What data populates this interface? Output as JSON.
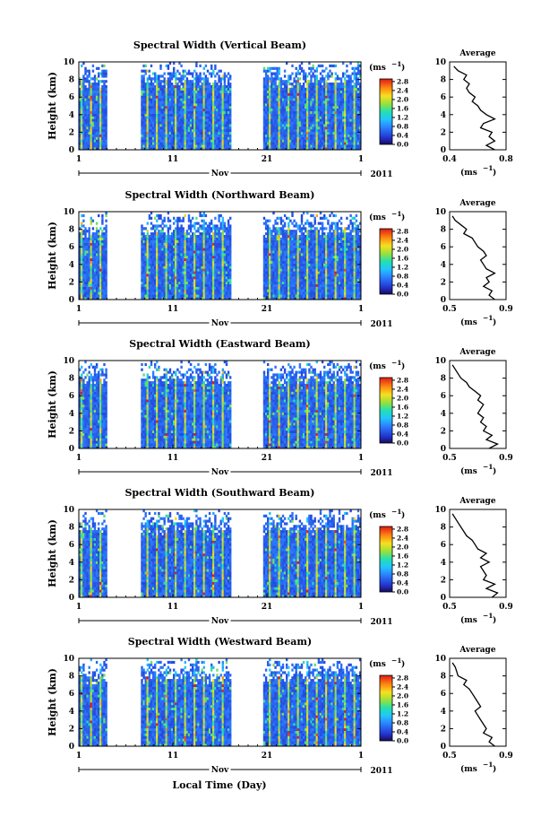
{
  "figure": {
    "xlabel": "Local Time (Day)",
    "month_label": "Nov",
    "year_label": "2011",
    "ylabel": "Height (km)",
    "unit_label": "(ms",
    "unit_exp": "−1",
    "avg_title": "Average",
    "avg_unit": "(ms",
    "avg_unit_exp": "−1"
  },
  "chart_data": [
    {
      "type": "heatmap",
      "title": "Spectral Width (Vertical Beam)",
      "x_ticks": [
        "1",
        "11",
        "21",
        "1"
      ],
      "xlim_days": [
        1,
        31
      ],
      "y_ticks": [
        "0",
        "2",
        "4",
        "6",
        "8",
        "10"
      ],
      "ylim": [
        0,
        10
      ],
      "data_gaps_days": [
        [
          4.0,
          7.6
        ],
        [
          17.2,
          20.5
        ]
      ],
      "colorbar": {
        "ticks": [
          "0.0",
          "0.4",
          "0.8",
          "1.2",
          "1.6",
          "2.0",
          "2.4",
          "2.8"
        ],
        "range": [
          0,
          2.8
        ]
      },
      "profile": {
        "title": "Average",
        "x_ticks": [
          "0.4",
          "0.8"
        ],
        "xlim": [
          0.4,
          0.8
        ],
        "y": [
          0,
          0.5,
          1,
          1.5,
          2,
          2.5,
          3,
          3.5,
          4,
          4.5,
          5,
          5.5,
          6,
          6.5,
          7,
          7.5,
          8,
          8.5,
          9,
          9.5
        ],
        "values": [
          0.72,
          0.66,
          0.72,
          0.68,
          0.7,
          0.62,
          0.64,
          0.72,
          0.66,
          0.62,
          0.6,
          0.56,
          0.58,
          0.54,
          0.52,
          0.54,
          0.5,
          0.52,
          0.46,
          0.43
        ]
      }
    },
    {
      "type": "heatmap",
      "title": "Spectral Width (Northward Beam)",
      "x_ticks": [
        "1",
        "11",
        "21",
        "1"
      ],
      "xlim_days": [
        1,
        31
      ],
      "y_ticks": [
        "0",
        "2",
        "4",
        "6",
        "8",
        "10"
      ],
      "ylim": [
        0,
        10
      ],
      "data_gaps_days": [
        [
          4.0,
          7.6
        ],
        [
          17.2,
          20.5
        ]
      ],
      "colorbar": {
        "ticks": [
          "0.0",
          "0.4",
          "0.8",
          "1.2",
          "1.6",
          "2.0",
          "2.4",
          "2.8"
        ],
        "range": [
          0,
          2.8
        ]
      },
      "profile": {
        "title": "Average",
        "x_ticks": [
          "0.5",
          "0.9"
        ],
        "xlim": [
          0.5,
          0.9
        ],
        "y": [
          0,
          0.5,
          1,
          1.5,
          2,
          2.5,
          3,
          3.5,
          4,
          4.5,
          5,
          5.5,
          6,
          6.5,
          7,
          7.5,
          8,
          8.5,
          9,
          9.5
        ],
        "values": [
          0.82,
          0.78,
          0.8,
          0.74,
          0.78,
          0.76,
          0.82,
          0.76,
          0.74,
          0.72,
          0.76,
          0.74,
          0.7,
          0.68,
          0.66,
          0.6,
          0.62,
          0.58,
          0.54,
          0.52
        ]
      }
    },
    {
      "type": "heatmap",
      "title": "Spectral Width (Eastward Beam)",
      "x_ticks": [
        "1",
        "11",
        "21",
        "1"
      ],
      "xlim_days": [
        1,
        31
      ],
      "y_ticks": [
        "0",
        "2",
        "4",
        "6",
        "8",
        "10"
      ],
      "ylim": [
        0,
        10
      ],
      "data_gaps_days": [
        [
          4.0,
          7.6
        ],
        [
          17.2,
          20.5
        ]
      ],
      "colorbar": {
        "ticks": [
          "0.0",
          "0.4",
          "0.8",
          "1.2",
          "1.6",
          "2.0",
          "2.4",
          "2.8"
        ],
        "range": [
          0,
          2.8
        ]
      },
      "profile": {
        "title": "Average",
        "x_ticks": [
          "0.5",
          "0.9"
        ],
        "xlim": [
          0.5,
          0.9
        ],
        "y": [
          0,
          0.5,
          1,
          1.5,
          2,
          2.5,
          3,
          3.5,
          4,
          4.5,
          5,
          5.5,
          6,
          6.5,
          7,
          7.5,
          8,
          8.5,
          9,
          9.5
        ],
        "values": [
          0.78,
          0.84,
          0.76,
          0.8,
          0.74,
          0.76,
          0.72,
          0.74,
          0.7,
          0.72,
          0.74,
          0.7,
          0.72,
          0.68,
          0.64,
          0.62,
          0.58,
          0.56,
          0.54,
          0.52
        ]
      }
    },
    {
      "type": "heatmap",
      "title": "Spectral Width (Southward Beam)",
      "x_ticks": [
        "1",
        "11",
        "21",
        "1"
      ],
      "xlim_days": [
        1,
        31
      ],
      "y_ticks": [
        "0",
        "2",
        "4",
        "6",
        "8",
        "10"
      ],
      "ylim": [
        0,
        10
      ],
      "data_gaps_days": [
        [
          4.0,
          7.6
        ],
        [
          17.2,
          20.5
        ]
      ],
      "colorbar": {
        "ticks": [
          "0.0",
          "0.4",
          "0.8",
          "1.2",
          "1.6",
          "2.0",
          "2.4",
          "2.8"
        ],
        "range": [
          0,
          2.8
        ]
      },
      "profile": {
        "title": "Average",
        "x_ticks": [
          "0.5",
          "0.9"
        ],
        "xlim": [
          0.5,
          0.9
        ],
        "y": [
          0,
          0.5,
          1,
          1.5,
          2,
          2.5,
          3,
          3.5,
          4,
          4.5,
          5,
          5.5,
          6,
          6.5,
          7,
          7.5,
          8,
          8.5,
          9,
          9.5
        ],
        "values": [
          0.8,
          0.84,
          0.76,
          0.82,
          0.74,
          0.76,
          0.74,
          0.72,
          0.78,
          0.72,
          0.76,
          0.7,
          0.68,
          0.66,
          0.62,
          0.6,
          0.58,
          0.56,
          0.54,
          0.52
        ]
      }
    },
    {
      "type": "heatmap",
      "title": "Spectral Width (Westward Beam)",
      "x_ticks": [
        "1",
        "11",
        "21",
        "1"
      ],
      "xlim_days": [
        1,
        31
      ],
      "y_ticks": [
        "0",
        "2",
        "4",
        "6",
        "8",
        "10"
      ],
      "ylim": [
        0,
        10
      ],
      "data_gaps_days": [
        [
          4.0,
          7.6
        ],
        [
          17.2,
          20.5
        ]
      ],
      "colorbar": {
        "ticks": [
          "0.0",
          "0.4",
          "0.8",
          "1.2",
          "1.6",
          "2.0",
          "2.4",
          "2.8"
        ],
        "range": [
          0,
          2.8
        ]
      },
      "profile": {
        "title": "Average",
        "x_ticks": [
          "0.5",
          "0.9"
        ],
        "xlim": [
          0.5,
          0.9
        ],
        "y": [
          0,
          0.5,
          1,
          1.5,
          2,
          2.5,
          3,
          3.5,
          4,
          4.5,
          5,
          5.5,
          6,
          6.5,
          7,
          7.5,
          8,
          8.5,
          9,
          9.5
        ],
        "values": [
          0.82,
          0.78,
          0.8,
          0.74,
          0.76,
          0.74,
          0.72,
          0.7,
          0.68,
          0.72,
          0.7,
          0.68,
          0.66,
          0.64,
          0.6,
          0.62,
          0.56,
          0.55,
          0.54,
          0.52
        ]
      }
    }
  ]
}
